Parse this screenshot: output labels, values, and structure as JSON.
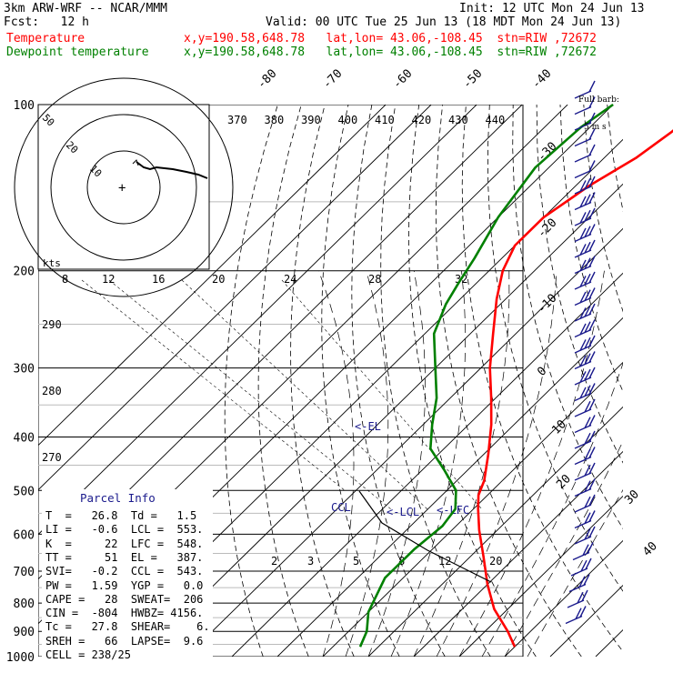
{
  "header": {
    "model": "3km ARW-WRF -- NCAR/MMM",
    "init": "Init: 12 UTC Mon 24 Jun 13",
    "fcst": "Fcst:   12 h",
    "valid": "Valid: 00 UTC Tue 25 Jun 13 (18 MDT Mon 24 Jun 13)",
    "temp_label": "Temperature",
    "dew_label": "Dewpoint temperature",
    "temp_loc": "x,y=190.58,648.78   lat,lon= 43.06,-108.45  stn=RIW ,72672",
    "dew_loc": "x,y=190.58,648.78   lat,lon= 43.06,-108.45  stn=RIW ,72672"
  },
  "barb_legend": {
    "line1": "Full barb:",
    "line2": "5 m s"
  },
  "chart_data": {
    "type": "skew-t",
    "pressure_ticks": [
      "100",
      "200",
      "300",
      "400",
      "500",
      "600",
      "700",
      "800",
      "900",
      "1000"
    ],
    "pressure_values": [
      100,
      200,
      300,
      400,
      500,
      600,
      700,
      800,
      900,
      1000
    ],
    "isotherm_labels": [
      "-80",
      "-70",
      "-60",
      "-50",
      "-40",
      "-30",
      "-20",
      "-10",
      "0",
      "10",
      "20",
      "30",
      "40"
    ],
    "theta_labels": [
      "370",
      "380",
      "390",
      "400",
      "410",
      "420",
      "430",
      "440"
    ],
    "theta_low_labels": [
      "290",
      "280",
      "270"
    ],
    "mixing_ratio_labels": [
      "2",
      "3",
      "5",
      "8",
      "12",
      "20"
    ],
    "hodograph": {
      "rings": [
        "10",
        "20",
        "50"
      ],
      "kts_label": "kts",
      "speed_labels": [
        "8",
        "12",
        "16",
        "20",
        "24",
        "28",
        "32"
      ]
    },
    "annotations": {
      "el": "<-EL",
      "ccl": "CCL",
      "lcl": "<-LCL",
      "lfc": "<-LFC"
    },
    "temperature": {
      "name": "Temperature",
      "color": "#ff0000",
      "p": [
        960,
        900,
        820,
        740,
        660,
        590,
        540,
        510,
        480,
        430,
        380,
        340,
        300,
        260,
        225,
        200,
        180,
        160,
        140,
        125,
        112,
        100
      ],
      "t": [
        30,
        25,
        17,
        10,
        3,
        -4,
        -9,
        -12,
        -14,
        -19,
        -25,
        -31,
        -38,
        -45,
        -52,
        -57,
        -60,
        -60,
        -57,
        -53,
        -51,
        -50
      ]
    },
    "dewpoint": {
      "name": "Dewpoint temperature",
      "color": "#008000",
      "p": [
        960,
        900,
        830,
        720,
        640,
        580,
        540,
        500,
        460,
        420,
        380,
        340,
        300,
        260,
        230,
        210,
        190,
        160,
        130,
        110,
        100
      ],
      "t": [
        -4,
        -6,
        -10,
        -14,
        -14,
        -13,
        -14,
        -18,
        -25,
        -33,
        -38,
        -43,
        -50,
        -58,
        -62,
        -64,
        -66,
        -70,
        -73,
        -72,
        -70
      ]
    }
  },
  "parcel_info": {
    "title": "Parcel Info",
    "rows": [
      "T  =   26.8  Td =   1.5",
      "LI =   -0.6  LCL =  553.",
      "K  =     22  LFC =  548.",
      "TT =     51  EL =   387.",
      "SVI=   -0.2  CCL =  543.",
      "PW =   1.59  YGP =   0.0",
      "CAPE =   28  SWEAT=  206",
      "CIN =  -804  HWBZ= 4156.",
      "Tc =   27.8  SHEAR=    6.",
      "SREH =   66  LAPSE=  9.6",
      "CELL = 238/25"
    ]
  }
}
